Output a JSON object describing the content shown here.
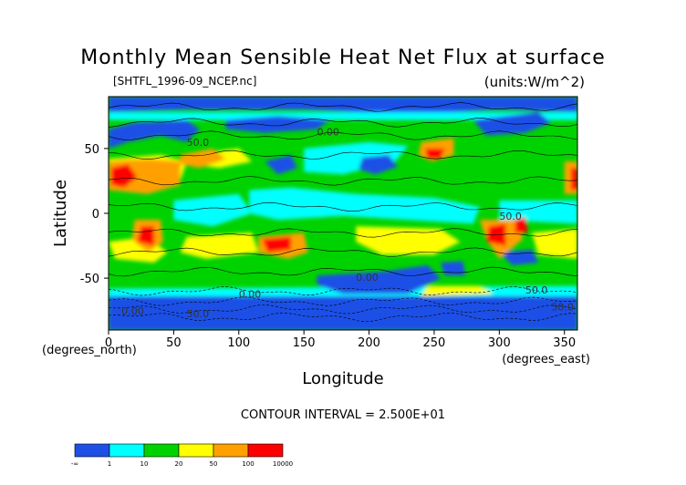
{
  "chart_data": {
    "type": "heatmap",
    "title": "Monthly Mean Sensible Heat Net Flux at surface",
    "source_file": "[SHTFL_1996-09_NCEP.nc]",
    "units": "(units:W/m^2)",
    "xlabel": "Longitude",
    "ylabel": "Latitude",
    "x_units": "(degrees_east)",
    "y_units": "(degrees_north)",
    "xlim": [
      0,
      360
    ],
    "ylim": [
      -90,
      90
    ],
    "x_ticks": [
      0,
      50,
      100,
      150,
      200,
      250,
      300,
      350
    ],
    "y_ticks": [
      50,
      0,
      -50
    ],
    "contour_interval": "CONTOUR INTERVAL = 2.500E+01",
    "contour_labels": [
      "50.0",
      "0.00",
      "50.0",
      "0.00",
      "0.00",
      "50.0",
      "0.00",
      "50.0",
      "50.0"
    ],
    "colorbar": {
      "colors": [
        "#1e50e6",
        "#00ffff",
        "#00d200",
        "#ffff00",
        "#ffa000",
        "#ff0000"
      ],
      "tick_labels": [
        "-∞",
        "1",
        "10",
        "20",
        "50",
        "100",
        "10000"
      ]
    }
  }
}
